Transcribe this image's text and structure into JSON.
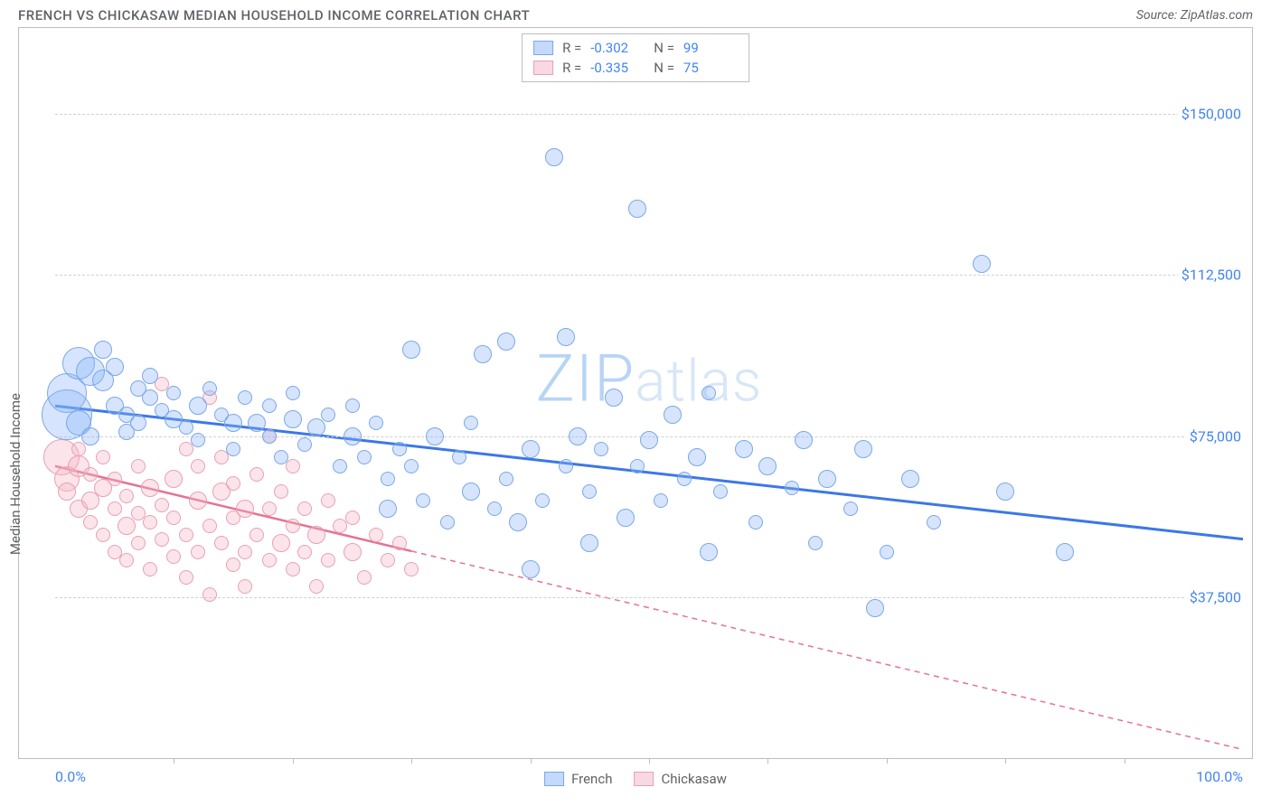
{
  "title": "FRENCH VS CHICKASAW MEDIAN HOUSEHOLD INCOME CORRELATION CHART",
  "source": "Source: ZipAtlas.com",
  "watermark_zip": "ZIP",
  "watermark_atlas": "atlas",
  "yaxis_title": "Median Household Income",
  "chart": {
    "type": "scatter",
    "xlim": [
      0,
      100
    ],
    "ylim": [
      0,
      170000
    ],
    "yticks": [
      {
        "v": 37500,
        "label": "$37,500"
      },
      {
        "v": 75000,
        "label": "$75,000"
      },
      {
        "v": 112500,
        "label": "$112,500"
      },
      {
        "v": 150000,
        "label": "$150,000"
      }
    ],
    "xticks_major": [
      0,
      100
    ],
    "xticks_minor": [
      10,
      20,
      30,
      40,
      50,
      60,
      70,
      80,
      90
    ],
    "xtick_labels": [
      {
        "v": 0,
        "label": "0.0%"
      },
      {
        "v": 100,
        "label": "100.0%"
      }
    ],
    "background_color": "#ffffff",
    "grid_color": "#d0d0d0",
    "series": [
      {
        "name": "French",
        "color_fill": "rgba(138,180,248,0.35)",
        "color_stroke": "#7aa8e8",
        "trend_color": "#3b78e7",
        "trend_style": "solid",
        "trend": {
          "x1": 0,
          "y1": 82000,
          "x2": 100,
          "y2": 51000
        },
        "R": "-0.302",
        "N": "99",
        "points": [
          {
            "x": 1,
            "y": 80000,
            "r": 28
          },
          {
            "x": 1,
            "y": 85000,
            "r": 22
          },
          {
            "x": 2,
            "y": 92000,
            "r": 18
          },
          {
            "x": 2,
            "y": 78000,
            "r": 14
          },
          {
            "x": 3,
            "y": 90000,
            "r": 16
          },
          {
            "x": 3,
            "y": 75000,
            "r": 10
          },
          {
            "x": 4,
            "y": 88000,
            "r": 12
          },
          {
            "x": 4,
            "y": 95000,
            "r": 10
          },
          {
            "x": 5,
            "y": 82000,
            "r": 10
          },
          {
            "x": 5,
            "y": 91000,
            "r": 10
          },
          {
            "x": 6,
            "y": 80000,
            "r": 9
          },
          {
            "x": 6,
            "y": 76000,
            "r": 9
          },
          {
            "x": 7,
            "y": 86000,
            "r": 9
          },
          {
            "x": 7,
            "y": 78000,
            "r": 9
          },
          {
            "x": 8,
            "y": 84000,
            "r": 9
          },
          {
            "x": 8,
            "y": 89000,
            "r": 9
          },
          {
            "x": 9,
            "y": 81000,
            "r": 8
          },
          {
            "x": 10,
            "y": 79000,
            "r": 10
          },
          {
            "x": 10,
            "y": 85000,
            "r": 8
          },
          {
            "x": 11,
            "y": 77000,
            "r": 8
          },
          {
            "x": 12,
            "y": 82000,
            "r": 10
          },
          {
            "x": 12,
            "y": 74000,
            "r": 8
          },
          {
            "x": 13,
            "y": 86000,
            "r": 8
          },
          {
            "x": 14,
            "y": 80000,
            "r": 8
          },
          {
            "x": 15,
            "y": 78000,
            "r": 10
          },
          {
            "x": 15,
            "y": 72000,
            "r": 8
          },
          {
            "x": 16,
            "y": 84000,
            "r": 8
          },
          {
            "x": 17,
            "y": 78000,
            "r": 10
          },
          {
            "x": 18,
            "y": 75000,
            "r": 8
          },
          {
            "x": 18,
            "y": 82000,
            "r": 8
          },
          {
            "x": 19,
            "y": 70000,
            "r": 8
          },
          {
            "x": 20,
            "y": 79000,
            "r": 10
          },
          {
            "x": 20,
            "y": 85000,
            "r": 8
          },
          {
            "x": 21,
            "y": 73000,
            "r": 8
          },
          {
            "x": 22,
            "y": 77000,
            "r": 10
          },
          {
            "x": 23,
            "y": 80000,
            "r": 8
          },
          {
            "x": 24,
            "y": 68000,
            "r": 8
          },
          {
            "x": 25,
            "y": 75000,
            "r": 10
          },
          {
            "x": 25,
            "y": 82000,
            "r": 8
          },
          {
            "x": 26,
            "y": 70000,
            "r": 8
          },
          {
            "x": 27,
            "y": 78000,
            "r": 8
          },
          {
            "x": 28,
            "y": 58000,
            "r": 10
          },
          {
            "x": 28,
            "y": 65000,
            "r": 8
          },
          {
            "x": 29,
            "y": 72000,
            "r": 8
          },
          {
            "x": 30,
            "y": 95000,
            "r": 10
          },
          {
            "x": 30,
            "y": 68000,
            "r": 8
          },
          {
            "x": 31,
            "y": 60000,
            "r": 8
          },
          {
            "x": 32,
            "y": 75000,
            "r": 10
          },
          {
            "x": 33,
            "y": 55000,
            "r": 8
          },
          {
            "x": 34,
            "y": 70000,
            "r": 8
          },
          {
            "x": 35,
            "y": 62000,
            "r": 10
          },
          {
            "x": 35,
            "y": 78000,
            "r": 8
          },
          {
            "x": 36,
            "y": 94000,
            "r": 10
          },
          {
            "x": 37,
            "y": 58000,
            "r": 8
          },
          {
            "x": 38,
            "y": 97000,
            "r": 10
          },
          {
            "x": 38,
            "y": 65000,
            "r": 8
          },
          {
            "x": 39,
            "y": 55000,
            "r": 10
          },
          {
            "x": 40,
            "y": 72000,
            "r": 10
          },
          {
            "x": 40,
            "y": 44000,
            "r": 10
          },
          {
            "x": 41,
            "y": 60000,
            "r": 8
          },
          {
            "x": 42,
            "y": 140000,
            "r": 10
          },
          {
            "x": 43,
            "y": 98000,
            "r": 10
          },
          {
            "x": 43,
            "y": 68000,
            "r": 8
          },
          {
            "x": 44,
            "y": 75000,
            "r": 10
          },
          {
            "x": 45,
            "y": 50000,
            "r": 10
          },
          {
            "x": 45,
            "y": 62000,
            "r": 8
          },
          {
            "x": 46,
            "y": 72000,
            "r": 8
          },
          {
            "x": 47,
            "y": 84000,
            "r": 10
          },
          {
            "x": 48,
            "y": 56000,
            "r": 10
          },
          {
            "x": 49,
            "y": 128000,
            "r": 10
          },
          {
            "x": 49,
            "y": 68000,
            "r": 8
          },
          {
            "x": 50,
            "y": 74000,
            "r": 10
          },
          {
            "x": 51,
            "y": 60000,
            "r": 8
          },
          {
            "x": 52,
            "y": 80000,
            "r": 10
          },
          {
            "x": 53,
            "y": 65000,
            "r": 8
          },
          {
            "x": 54,
            "y": 70000,
            "r": 10
          },
          {
            "x": 55,
            "y": 48000,
            "r": 10
          },
          {
            "x": 55,
            "y": 85000,
            "r": 8
          },
          {
            "x": 56,
            "y": 62000,
            "r": 8
          },
          {
            "x": 58,
            "y": 72000,
            "r": 10
          },
          {
            "x": 59,
            "y": 55000,
            "r": 8
          },
          {
            "x": 60,
            "y": 68000,
            "r": 10
          },
          {
            "x": 62,
            "y": 63000,
            "r": 8
          },
          {
            "x": 63,
            "y": 74000,
            "r": 10
          },
          {
            "x": 64,
            "y": 50000,
            "r": 8
          },
          {
            "x": 65,
            "y": 65000,
            "r": 10
          },
          {
            "x": 67,
            "y": 58000,
            "r": 8
          },
          {
            "x": 68,
            "y": 72000,
            "r": 10
          },
          {
            "x": 69,
            "y": 35000,
            "r": 10
          },
          {
            "x": 70,
            "y": 48000,
            "r": 8
          },
          {
            "x": 72,
            "y": 65000,
            "r": 10
          },
          {
            "x": 74,
            "y": 55000,
            "r": 8
          },
          {
            "x": 78,
            "y": 115000,
            "r": 10
          },
          {
            "x": 80,
            "y": 62000,
            "r": 10
          },
          {
            "x": 85,
            "y": 48000,
            "r": 10
          }
        ]
      },
      {
        "name": "Chickasaw",
        "color_fill": "rgba(244,180,196,0.35)",
        "color_stroke": "#e8a0b4",
        "trend_color": "#e57393",
        "trend_style": "solid-then-dashed",
        "trend": {
          "x1": 0,
          "y1": 68000,
          "x2": 100,
          "y2": 2000
        },
        "trend_solid_until_x": 30,
        "R": "-0.335",
        "N": "75",
        "points": [
          {
            "x": 0.5,
            "y": 70000,
            "r": 20
          },
          {
            "x": 1,
            "y": 65000,
            "r": 14
          },
          {
            "x": 1,
            "y": 62000,
            "r": 10
          },
          {
            "x": 2,
            "y": 68000,
            "r": 12
          },
          {
            "x": 2,
            "y": 58000,
            "r": 10
          },
          {
            "x": 2,
            "y": 72000,
            "r": 8
          },
          {
            "x": 3,
            "y": 60000,
            "r": 10
          },
          {
            "x": 3,
            "y": 55000,
            "r": 8
          },
          {
            "x": 3,
            "y": 66000,
            "r": 8
          },
          {
            "x": 4,
            "y": 63000,
            "r": 10
          },
          {
            "x": 4,
            "y": 52000,
            "r": 8
          },
          {
            "x": 4,
            "y": 70000,
            "r": 8
          },
          {
            "x": 5,
            "y": 58000,
            "r": 8
          },
          {
            "x": 5,
            "y": 48000,
            "r": 8
          },
          {
            "x": 5,
            "y": 65000,
            "r": 8
          },
          {
            "x": 6,
            "y": 54000,
            "r": 10
          },
          {
            "x": 6,
            "y": 61000,
            "r": 8
          },
          {
            "x": 6,
            "y": 46000,
            "r": 8
          },
          {
            "x": 7,
            "y": 68000,
            "r": 8
          },
          {
            "x": 7,
            "y": 57000,
            "r": 8
          },
          {
            "x": 7,
            "y": 50000,
            "r": 8
          },
          {
            "x": 8,
            "y": 63000,
            "r": 10
          },
          {
            "x": 8,
            "y": 55000,
            "r": 8
          },
          {
            "x": 8,
            "y": 44000,
            "r": 8
          },
          {
            "x": 9,
            "y": 87000,
            "r": 8
          },
          {
            "x": 9,
            "y": 59000,
            "r": 8
          },
          {
            "x": 9,
            "y": 51000,
            "r": 8
          },
          {
            "x": 10,
            "y": 65000,
            "r": 10
          },
          {
            "x": 10,
            "y": 47000,
            "r": 8
          },
          {
            "x": 10,
            "y": 56000,
            "r": 8
          },
          {
            "x": 11,
            "y": 72000,
            "r": 8
          },
          {
            "x": 11,
            "y": 52000,
            "r": 8
          },
          {
            "x": 11,
            "y": 42000,
            "r": 8
          },
          {
            "x": 12,
            "y": 60000,
            "r": 10
          },
          {
            "x": 12,
            "y": 48000,
            "r": 8
          },
          {
            "x": 12,
            "y": 68000,
            "r": 8
          },
          {
            "x": 13,
            "y": 84000,
            "r": 8
          },
          {
            "x": 13,
            "y": 54000,
            "r": 8
          },
          {
            "x": 13,
            "y": 38000,
            "r": 8
          },
          {
            "x": 14,
            "y": 62000,
            "r": 10
          },
          {
            "x": 14,
            "y": 50000,
            "r": 8
          },
          {
            "x": 14,
            "y": 70000,
            "r": 8
          },
          {
            "x": 15,
            "y": 56000,
            "r": 8
          },
          {
            "x": 15,
            "y": 45000,
            "r": 8
          },
          {
            "x": 15,
            "y": 64000,
            "r": 8
          },
          {
            "x": 16,
            "y": 58000,
            "r": 10
          },
          {
            "x": 16,
            "y": 48000,
            "r": 8
          },
          {
            "x": 16,
            "y": 40000,
            "r": 8
          },
          {
            "x": 17,
            "y": 66000,
            "r": 8
          },
          {
            "x": 17,
            "y": 52000,
            "r": 8
          },
          {
            "x": 18,
            "y": 75000,
            "r": 8
          },
          {
            "x": 18,
            "y": 46000,
            "r": 8
          },
          {
            "x": 18,
            "y": 58000,
            "r": 8
          },
          {
            "x": 19,
            "y": 50000,
            "r": 10
          },
          {
            "x": 19,
            "y": 62000,
            "r": 8
          },
          {
            "x": 20,
            "y": 54000,
            "r": 8
          },
          {
            "x": 20,
            "y": 44000,
            "r": 8
          },
          {
            "x": 20,
            "y": 68000,
            "r": 8
          },
          {
            "x": 21,
            "y": 48000,
            "r": 8
          },
          {
            "x": 21,
            "y": 58000,
            "r": 8
          },
          {
            "x": 22,
            "y": 52000,
            "r": 10
          },
          {
            "x": 22,
            "y": 40000,
            "r": 8
          },
          {
            "x": 23,
            "y": 60000,
            "r": 8
          },
          {
            "x": 23,
            "y": 46000,
            "r": 8
          },
          {
            "x": 24,
            "y": 54000,
            "r": 8
          },
          {
            "x": 25,
            "y": 48000,
            "r": 10
          },
          {
            "x": 25,
            "y": 56000,
            "r": 8
          },
          {
            "x": 26,
            "y": 42000,
            "r": 8
          },
          {
            "x": 27,
            "y": 52000,
            "r": 8
          },
          {
            "x": 28,
            "y": 46000,
            "r": 8
          },
          {
            "x": 29,
            "y": 50000,
            "r": 8
          },
          {
            "x": 30,
            "y": 44000,
            "r": 8
          }
        ]
      }
    ]
  },
  "stats_box": {
    "r_label": "R =",
    "n_label": "N ="
  },
  "legend": {
    "series_a": "French",
    "series_b": "Chickasaw"
  }
}
